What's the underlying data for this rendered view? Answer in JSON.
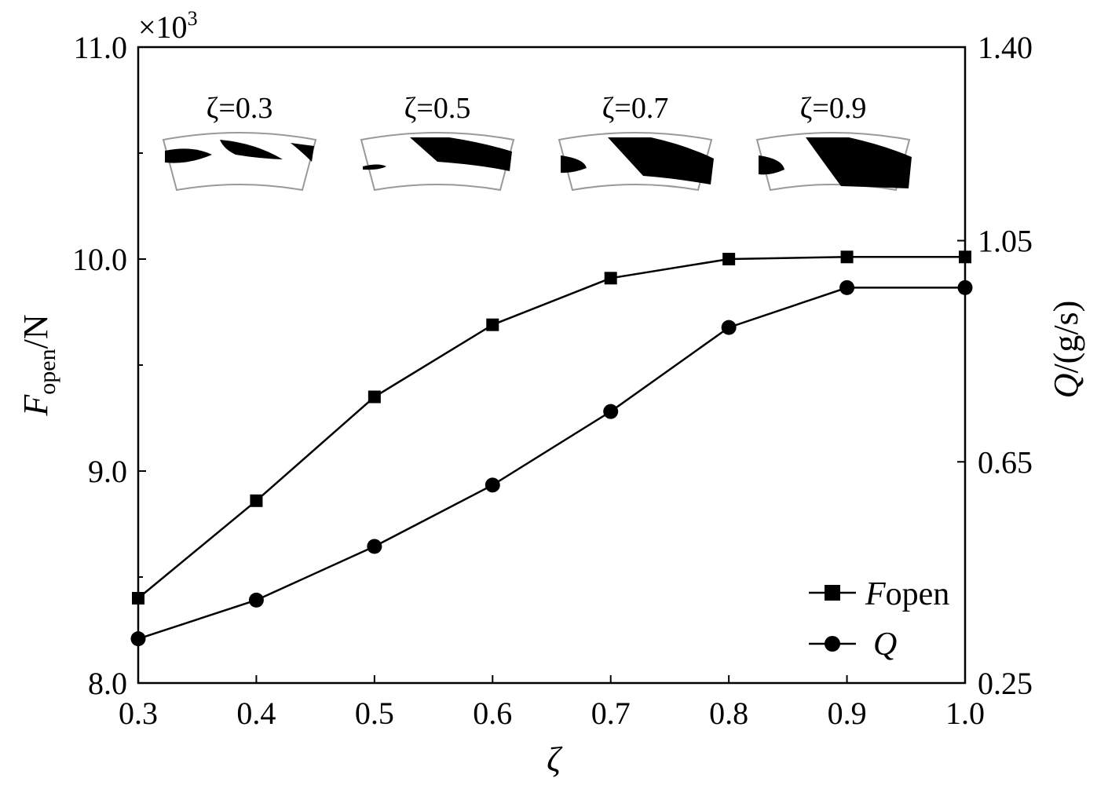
{
  "chart_data": {
    "type": "line",
    "x": [
      0.3,
      0.4,
      0.5,
      0.6,
      0.7,
      0.8,
      0.9,
      1.0
    ],
    "xlabel": "ζ",
    "xlim": [
      0.3,
      1.0
    ],
    "x_ticks": [
      "0.3",
      "0.4",
      "0.5",
      "0.6",
      "0.7",
      "0.8",
      "0.9",
      "1.0"
    ],
    "y_left": {
      "label_main": "F",
      "label_sub": "open",
      "label_suffix": "/N",
      "multiplier": "×10",
      "multiplier_exp": "3",
      "ylim": [
        8.0,
        11.0
      ],
      "ticks": [
        "8.0",
        "9.0",
        "10.0",
        "11.0"
      ]
    },
    "y_right": {
      "label_main": "Q",
      "label_suffix": "/(g/s)",
      "ylim": [
        0.25,
        1.4
      ],
      "ticks": [
        "0.25",
        "0.65",
        "1.05",
        "1.40"
      ]
    },
    "series": [
      {
        "name_main": "F",
        "name_sub": "open",
        "axis": "left",
        "marker": "square",
        "values": [
          8.4,
          8.86,
          9.35,
          9.69,
          9.91,
          10.0,
          10.01,
          10.01
        ]
      },
      {
        "name_main": "Q",
        "axis": "right",
        "marker": "circle",
        "values": [
          0.33,
          0.4,
          0.497,
          0.608,
          0.741,
          0.893,
          0.965,
          0.965
        ]
      }
    ],
    "insets": [
      {
        "label": "ζ=0.3",
        "pattern": "low"
      },
      {
        "label": "ζ=0.5",
        "pattern": "mid"
      },
      {
        "label": "ζ=0.7",
        "pattern": "high"
      },
      {
        "label": "ζ=0.9",
        "pattern": "full"
      }
    ],
    "legend_position": "bottom-right",
    "grid": false,
    "colors": {
      "line": "#000000",
      "inset_border": "#999999",
      "fill": "#000000"
    }
  }
}
